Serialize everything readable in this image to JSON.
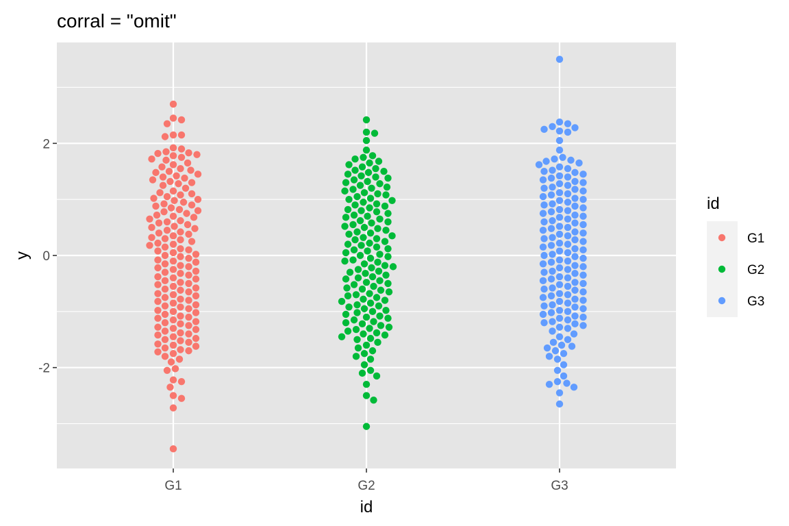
{
  "chart_data": {
    "type": "scatter",
    "subtype": "beeswarm",
    "title": "corral = \"omit\"",
    "xlabel": "id",
    "ylabel": "y",
    "categories": [
      "G1",
      "G2",
      "G3"
    ],
    "ylim": [
      -3.8,
      3.8
    ],
    "yticks": [
      -2,
      0,
      2
    ],
    "ytick_labels": [
      "-2",
      "0",
      "2"
    ],
    "grid": true,
    "legend": {
      "title": "id",
      "position": "right"
    },
    "background": "#e5e5e5",
    "series": [
      {
        "name": "G1",
        "color": "#F8766D",
        "max": 2.7,
        "min": -3.45,
        "values": [
          2.7,
          2.45,
          2.42,
          2.35,
          2.15,
          2.12,
          2.15,
          1.92,
          1.9,
          1.85,
          1.83,
          1.82,
          1.8,
          1.78,
          1.75,
          1.72,
          1.7,
          1.65,
          1.62,
          1.58,
          1.55,
          1.52,
          1.5,
          1.48,
          1.45,
          1.42,
          1.4,
          1.38,
          1.35,
          1.32,
          1.3,
          1.28,
          1.25,
          1.2,
          1.15,
          1.12,
          1.1,
          1.08,
          1.05,
          1.02,
          1.0,
          0.98,
          0.95,
          0.92,
          0.9,
          0.88,
          0.85,
          0.82,
          0.8,
          0.78,
          0.75,
          0.72,
          0.7,
          0.68,
          0.65,
          0.62,
          0.6,
          0.58,
          0.55,
          0.52,
          0.5,
          0.48,
          0.45,
          0.42,
          0.4,
          0.38,
          0.35,
          0.32,
          0.3,
          0.28,
          0.25,
          0.22,
          0.2,
          0.18,
          0.15,
          0.12,
          0.1,
          0.08,
          0.05,
          0.02,
          0.0,
          -0.02,
          -0.05,
          -0.08,
          -0.1,
          -0.12,
          -0.15,
          -0.18,
          -0.2,
          -0.22,
          -0.25,
          -0.28,
          -0.3,
          -0.32,
          -0.35,
          -0.38,
          -0.4,
          -0.42,
          -0.45,
          -0.48,
          -0.5,
          -0.52,
          -0.55,
          -0.58,
          -0.6,
          -0.62,
          -0.65,
          -0.68,
          -0.7,
          -0.72,
          -0.75,
          -0.78,
          -0.8,
          -0.82,
          -0.85,
          -0.88,
          -0.9,
          -0.92,
          -0.95,
          -0.98,
          -1.0,
          -1.02,
          -1.05,
          -1.08,
          -1.1,
          -1.12,
          -1.15,
          -1.18,
          -1.2,
          -1.22,
          -1.25,
          -1.28,
          -1.3,
          -1.32,
          -1.35,
          -1.38,
          -1.4,
          -1.42,
          -1.45,
          -1.48,
          -1.5,
          -1.52,
          -1.55,
          -1.58,
          -1.6,
          -1.62,
          -1.65,
          -1.68,
          -1.7,
          -1.72,
          -1.75,
          -1.8,
          -1.85,
          -1.9,
          -2.02,
          -2.05,
          -2.22,
          -2.25,
          -2.35,
          -2.5,
          -2.55,
          -2.72,
          -3.45
        ]
      },
      {
        "name": "G2",
        "color": "#00BA38",
        "max": 2.42,
        "min": -3.05,
        "values": [
          2.42,
          2.2,
          2.18,
          2.05,
          1.88,
          1.78,
          1.75,
          1.72,
          1.68,
          1.65,
          1.62,
          1.58,
          1.55,
          1.52,
          1.5,
          1.48,
          1.45,
          1.42,
          1.4,
          1.38,
          1.35,
          1.32,
          1.3,
          1.28,
          1.25,
          1.22,
          1.2,
          1.18,
          1.15,
          1.12,
          1.1,
          1.08,
          1.05,
          1.02,
          1.0,
          0.98,
          0.95,
          0.92,
          0.9,
          0.88,
          0.85,
          0.82,
          0.8,
          0.78,
          0.75,
          0.72,
          0.7,
          0.68,
          0.65,
          0.62,
          0.6,
          0.58,
          0.55,
          0.52,
          0.5,
          0.48,
          0.45,
          0.42,
          0.4,
          0.38,
          0.35,
          0.32,
          0.3,
          0.28,
          0.25,
          0.22,
          0.2,
          0.18,
          0.15,
          0.12,
          0.1,
          0.08,
          0.05,
          0.02,
          0.0,
          -0.02,
          -0.05,
          -0.08,
          -0.1,
          -0.12,
          -0.15,
          -0.18,
          -0.2,
          -0.22,
          -0.25,
          -0.28,
          -0.3,
          -0.32,
          -0.35,
          -0.38,
          -0.4,
          -0.42,
          -0.45,
          -0.48,
          -0.5,
          -0.52,
          -0.55,
          -0.58,
          -0.6,
          -0.62,
          -0.65,
          -0.68,
          -0.7,
          -0.72,
          -0.75,
          -0.78,
          -0.8,
          -0.82,
          -0.85,
          -0.88,
          -0.9,
          -0.92,
          -0.95,
          -0.98,
          -1.0,
          -1.02,
          -1.05,
          -1.08,
          -1.1,
          -1.12,
          -1.15,
          -1.18,
          -1.2,
          -1.22,
          -1.25,
          -1.28,
          -1.3,
          -1.32,
          -1.35,
          -1.38,
          -1.4,
          -1.42,
          -1.45,
          -1.48,
          -1.5,
          -1.55,
          -1.6,
          -1.65,
          -1.7,
          -1.75,
          -1.8,
          -1.85,
          -1.95,
          -2.05,
          -2.1,
          -2.15,
          -2.3,
          -2.5,
          -2.58,
          -3.05
        ]
      },
      {
        "name": "G3",
        "color": "#619CFF",
        "max": 3.5,
        "min": -2.65,
        "values": [
          3.5,
          2.38,
          2.35,
          2.3,
          2.28,
          2.25,
          2.22,
          2.2,
          2.05,
          1.88,
          1.75,
          1.72,
          1.7,
          1.68,
          1.65,
          1.62,
          1.58,
          1.55,
          1.52,
          1.5,
          1.48,
          1.45,
          1.42,
          1.4,
          1.38,
          1.35,
          1.32,
          1.3,
          1.28,
          1.25,
          1.22,
          1.2,
          1.18,
          1.15,
          1.12,
          1.1,
          1.08,
          1.05,
          1.02,
          1.0,
          0.98,
          0.95,
          0.92,
          0.9,
          0.88,
          0.85,
          0.82,
          0.8,
          0.78,
          0.75,
          0.72,
          0.7,
          0.68,
          0.65,
          0.62,
          0.6,
          0.58,
          0.55,
          0.52,
          0.5,
          0.48,
          0.45,
          0.42,
          0.4,
          0.38,
          0.35,
          0.32,
          0.3,
          0.28,
          0.25,
          0.22,
          0.2,
          0.18,
          0.15,
          0.12,
          0.1,
          0.08,
          0.05,
          0.02,
          0.0,
          -0.02,
          -0.05,
          -0.08,
          -0.1,
          -0.12,
          -0.15,
          -0.18,
          -0.2,
          -0.22,
          -0.25,
          -0.28,
          -0.3,
          -0.32,
          -0.35,
          -0.38,
          -0.4,
          -0.42,
          -0.45,
          -0.48,
          -0.5,
          -0.52,
          -0.55,
          -0.58,
          -0.6,
          -0.62,
          -0.65,
          -0.68,
          -0.7,
          -0.72,
          -0.75,
          -0.78,
          -0.8,
          -0.82,
          -0.85,
          -0.88,
          -0.9,
          -0.92,
          -0.95,
          -0.98,
          -1.0,
          -1.02,
          -1.05,
          -1.08,
          -1.1,
          -1.12,
          -1.15,
          -1.18,
          -1.2,
          -1.22,
          -1.25,
          -1.28,
          -1.3,
          -1.35,
          -1.4,
          -1.45,
          -1.5,
          -1.55,
          -1.6,
          -1.62,
          -1.65,
          -1.7,
          -1.75,
          -1.8,
          -1.85,
          -1.95,
          -2.05,
          -2.15,
          -2.25,
          -2.28,
          -2.3,
          -2.35,
          -2.45,
          -2.65
        ]
      }
    ]
  }
}
